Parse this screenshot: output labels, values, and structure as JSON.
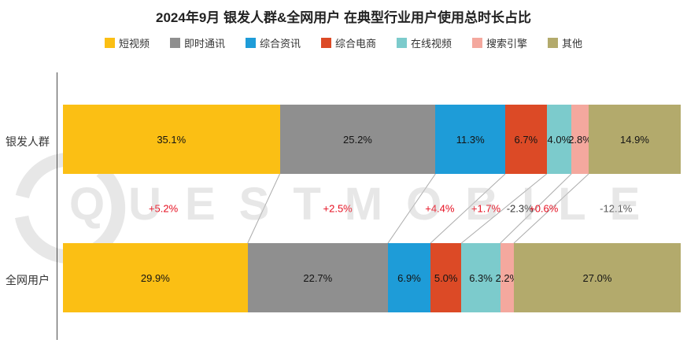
{
  "title": "2024年9月 银发人群&全网用户 在典型行业用户使用总时长占比",
  "watermark": "QUESTMOBILE",
  "legend": [
    {
      "label": "短视频",
      "color": "#FBBF14"
    },
    {
      "label": "即时通讯",
      "color": "#8F8F8F"
    },
    {
      "label": "综合资讯",
      "color": "#1E9CD8"
    },
    {
      "label": "综合电商",
      "color": "#DC4A26"
    },
    {
      "label": "在线视频",
      "color": "#7CCBCC"
    },
    {
      "label": "搜索引擎",
      "color": "#F4A89E"
    },
    {
      "label": "其他",
      "color": "#B3AA6C"
    }
  ],
  "chart_data": {
    "type": "bar",
    "variant": "horizontal-stacked-percentage",
    "title": "2024年9月 银发人群&全网用户 在典型行业用户使用总时长占比",
    "unit": "%",
    "xlim": [
      0,
      100
    ],
    "legend_position": "top",
    "categories": [
      "短视频",
      "即时通讯",
      "综合资讯",
      "综合电商",
      "在线视频",
      "搜索引擎",
      "其他"
    ],
    "series": [
      {
        "name": "银发人群",
        "values": [
          35.1,
          25.2,
          11.3,
          6.7,
          4.0,
          2.8,
          14.9
        ]
      },
      {
        "name": "全网用户",
        "values": [
          29.9,
          22.7,
          6.9,
          5.0,
          6.3,
          2.2,
          27.0
        ]
      }
    ],
    "differences": [
      {
        "label": "+5.2%",
        "color": "#E60F20"
      },
      {
        "label": "+2.5%",
        "color": "#E60F20"
      },
      {
        "label": "+4.4%",
        "color": "#E60F20"
      },
      {
        "label": "+1.7%",
        "color": "#E60F20"
      },
      {
        "label": "-2.3%",
        "color": "#333333"
      },
      {
        "label": "+0.6%",
        "color": "#E60F20"
      },
      {
        "label": "-12.1%",
        "color": "#595959"
      }
    ]
  }
}
